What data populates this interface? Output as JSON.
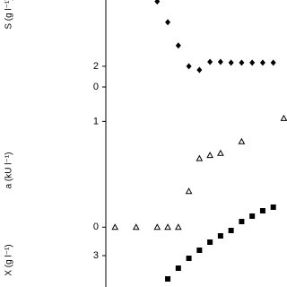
{
  "chart_data": [
    {
      "type": "scatter",
      "y_label": "S (g l⁻¹)",
      "marker": "diamond",
      "color": "#000000",
      "x": [
        4,
        5,
        6,
        7,
        8,
        9,
        10,
        11,
        12,
        13,
        14,
        15
      ],
      "values": [
        8.26,
        6.26,
        4.0,
        2.0,
        1.65,
        2.43,
        2.43,
        2.35,
        2.35,
        2.35,
        2.35,
        2.35
      ],
      "xlim": [
        -10.9,
        16.3
      ],
      "ylim": [
        0,
        8.4
      ],
      "yticks": [
        0,
        2
      ]
    },
    {
      "type": "scatter",
      "y_label": "a (kU l⁻¹)",
      "marker": "triangle-open",
      "color": "#000000",
      "x": [
        0,
        2,
        4,
        5,
        6,
        7,
        8,
        9,
        10,
        12,
        16
      ],
      "values": [
        0,
        0,
        0,
        0,
        0,
        0.34,
        0.65,
        0.68,
        0.7,
        0.81,
        1.03
      ],
      "xlim": [
        -10.9,
        16.3
      ],
      "ylim": [
        -0.04,
        1.3
      ],
      "yticks": [
        0,
        1
      ]
    },
    {
      "type": "scatter",
      "y_label": "X (g l⁻¹)",
      "marker": "square",
      "color": "#000000",
      "x": [
        5,
        6,
        7,
        8,
        9,
        10,
        11,
        12,
        13,
        14,
        15
      ],
      "values": [
        1.7,
        2.3,
        2.85,
        3.3,
        3.75,
        4.1,
        4.4,
        4.9,
        5.2,
        5.5,
        5.7
      ],
      "xlim": [
        -10.9,
        16.3
      ],
      "ylim": [
        1.25,
        6.0
      ],
      "yticks": [
        3
      ]
    }
  ]
}
